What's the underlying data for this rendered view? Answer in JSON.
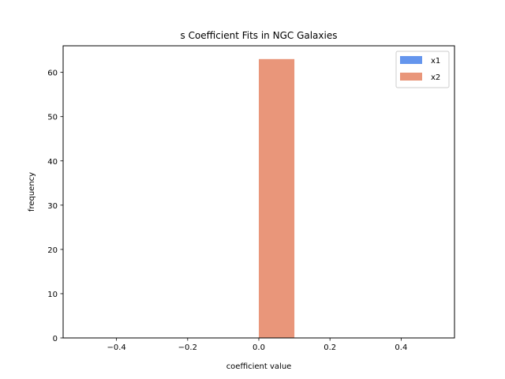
{
  "chart_data": {
    "type": "bar",
    "title": "s Coefficient Fits in NGC Galaxies",
    "xlabel": "coefficient value",
    "ylabel": "frequency",
    "xlim": [
      -0.55,
      0.55
    ],
    "ylim": [
      0,
      66
    ],
    "x_ticks": [
      -0.4,
      -0.2,
      0.0,
      0.2,
      0.4
    ],
    "x_tick_labels": [
      "−0.4",
      "−0.2",
      "0.0",
      "0.2",
      "0.4"
    ],
    "y_ticks": [
      0,
      10,
      20,
      30,
      40,
      50,
      60
    ],
    "y_tick_labels": [
      "0",
      "10",
      "20",
      "30",
      "40",
      "50",
      "60"
    ],
    "grid": false,
    "legend_position": "top-right",
    "series": [
      {
        "name": "x1",
        "color": "#6495ED",
        "bins": []
      },
      {
        "name": "x2",
        "color": "#E9967A",
        "bins": [
          {
            "x_start": 0.0,
            "x_end": 0.1,
            "count": 63
          }
        ]
      }
    ]
  }
}
